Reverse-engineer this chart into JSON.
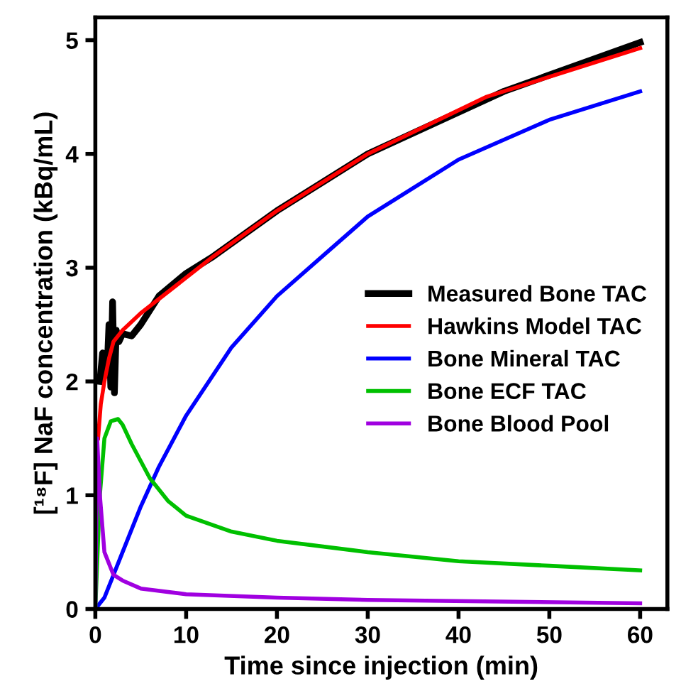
{
  "chart_data": {
    "type": "line",
    "xlabel": "Time since injection (min)",
    "ylabel": "[¹⁸F] NaF concentration (kBq/mL)",
    "xlim": [
      0,
      63
    ],
    "ylim": [
      0,
      5.2
    ],
    "xticks": [
      0,
      10,
      20,
      30,
      40,
      50,
      60
    ],
    "yticks": [
      0,
      1,
      2,
      3,
      4,
      5
    ],
    "grid": false,
    "legend": "right",
    "marker": "none",
    "line_style": "solid",
    "series": [
      {
        "name": "Measured Bone TAC",
        "color": "#000000",
        "x": [
          0.5,
          0.8,
          1.0,
          1.3,
          1.5,
          1.7,
          1.9,
          2.1,
          2.3,
          2.6,
          3,
          4,
          5,
          7,
          10,
          13,
          20,
          30,
          45,
          60
        ],
        "values": [
          2.0,
          2.25,
          2.05,
          2.1,
          2.5,
          1.95,
          2.7,
          1.9,
          2.45,
          2.35,
          2.42,
          2.4,
          2.5,
          2.75,
          2.95,
          3.1,
          3.5,
          4.0,
          4.55,
          4.98
        ]
      },
      {
        "name": "Hawkins Model TAC",
        "color": "#ff0000",
        "x": [
          0.3,
          0.6,
          1,
          1.5,
          2,
          3,
          5,
          9,
          13,
          20,
          30,
          43,
          60
        ],
        "values": [
          1.5,
          1.8,
          2.0,
          2.2,
          2.35,
          2.45,
          2.6,
          2.85,
          3.1,
          3.5,
          4.0,
          4.5,
          4.93
        ]
      },
      {
        "name": "Bone Mineral TAC",
        "color": "#0000ff",
        "x": [
          0,
          1,
          2,
          3,
          5,
          7,
          10,
          15,
          20,
          25,
          30,
          40,
          50,
          60
        ],
        "values": [
          0,
          0.1,
          0.3,
          0.5,
          0.9,
          1.25,
          1.7,
          2.3,
          2.75,
          3.1,
          3.45,
          3.95,
          4.3,
          4.55
        ]
      },
      {
        "name": "Bone ECF TAC",
        "color": "#00c000",
        "x": [
          0,
          0.5,
          1,
          1.7,
          2.5,
          3,
          4,
          5,
          6,
          8,
          10,
          15,
          20,
          30,
          40,
          50,
          60
        ],
        "values": [
          0,
          1.0,
          1.5,
          1.65,
          1.67,
          1.62,
          1.45,
          1.3,
          1.15,
          0.95,
          0.82,
          0.68,
          0.6,
          0.5,
          0.42,
          0.38,
          0.34
        ]
      },
      {
        "name": "Bone Blood Pool",
        "color": "#a000e0",
        "x": [
          0,
          0.2,
          0.5,
          1,
          2,
          3,
          5,
          10,
          20,
          30,
          60
        ],
        "values": [
          0,
          1.5,
          1.0,
          0.5,
          0.3,
          0.25,
          0.18,
          0.13,
          0.1,
          0.08,
          0.05
        ]
      }
    ]
  }
}
